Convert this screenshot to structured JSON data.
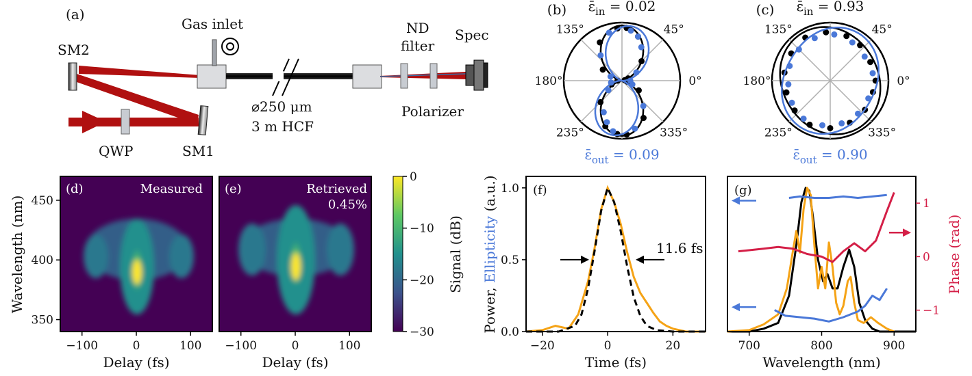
{
  "panel_a": {
    "label": "(a)",
    "sm2": "SM2",
    "sm1": "SM1",
    "gas_inlet": "Gas inlet",
    "qwp": "QWP",
    "fiber_dia": "⌀250 μm",
    "fiber_len": "3 m HCF",
    "nd_1": "ND",
    "nd_2": "filter",
    "spec": "Spec",
    "polarizer": "Polarizer",
    "beam_color": "#b01010"
  },
  "chart_data": [
    {
      "id": "b",
      "type": "polar",
      "label": "(b)",
      "title_main": "ε̄",
      "title_sub": "in",
      "title_val": " = 0.02",
      "bottom_main": "ε̄",
      "bottom_sub": "out",
      "bottom_val": " = 0.09",
      "angle_labels": [
        "0°",
        "45°",
        "135°",
        "180°",
        "235°",
        "335°"
      ],
      "series": [
        {
          "color": "#000000",
          "curve": {
            "e": 0.02,
            "tilt_deg": 90
          },
          "points_deg": [
            20,
            45,
            70,
            95,
            120,
            150,
            180,
            200,
            225,
            250,
            275,
            300,
            330,
            350,
            10,
            85,
            265
          ],
          "points_r": [
            0.12,
            0.5,
            0.85,
            0.95,
            0.8,
            0.4,
            0.08,
            0.2,
            0.55,
            0.88,
            0.98,
            0.78,
            0.35,
            0.1,
            0.05,
            0.96,
            0.97
          ]
        },
        {
          "color": "#4a78d8",
          "curve": {
            "e": 0.09,
            "tilt_deg": 80
          },
          "points_deg": [
            30,
            60,
            80,
            105,
            130,
            160,
            190,
            215,
            240,
            260,
            285,
            310,
            340,
            0,
            70,
            250
          ],
          "points_r": [
            0.3,
            0.7,
            0.92,
            0.9,
            0.6,
            0.22,
            0.2,
            0.3,
            0.66,
            0.93,
            0.9,
            0.6,
            0.2,
            0.15,
            0.85,
            0.8
          ]
        }
      ]
    },
    {
      "id": "c",
      "type": "polar",
      "label": "(c)",
      "title_main": "ε̄",
      "title_sub": "in",
      "title_val": " = 0.93",
      "bottom_main": "ε̄",
      "bottom_sub": "out",
      "bottom_val": " = 0.90",
      "angle_labels": [
        "0°",
        "45°",
        "135°",
        "180°",
        "235°",
        "335°"
      ],
      "series": [
        {
          "color": "#000000",
          "curve": {
            "e": 0.93,
            "tilt_deg": 120
          },
          "points_deg": [
            0,
            25,
            50,
            70,
            95,
            120,
            145,
            170,
            195,
            220,
            245,
            270,
            295,
            320,
            345
          ],
          "points_r": [
            0.82,
            0.8,
            0.84,
            0.86,
            0.88,
            0.9,
            0.86,
            0.84,
            0.82,
            0.84,
            0.88,
            0.86,
            0.84,
            0.82,
            0.8
          ]
        },
        {
          "color": "#4a78d8",
          "curve": {
            "e": 0.9,
            "tilt_deg": 60
          },
          "points_deg": [
            10,
            35,
            60,
            85,
            110,
            135,
            160,
            185,
            210,
            235,
            260,
            285,
            310,
            335
          ],
          "points_r": [
            0.78,
            0.76,
            0.8,
            0.84,
            0.82,
            0.8,
            0.78,
            0.76,
            0.8,
            0.84,
            0.82,
            0.8,
            0.78,
            0.76
          ]
        }
      ]
    },
    {
      "id": "d",
      "type": "heatmap",
      "label": "(d)",
      "title": "Measured",
      "xlabel": "Delay (fs)",
      "ylabel": "Wavelength (nm)",
      "xlim": [
        -140,
        140
      ],
      "ylim": [
        340,
        470
      ],
      "xticks": [
        -100,
        0,
        100
      ],
      "yticks": [
        350,
        400,
        450
      ]
    },
    {
      "id": "e",
      "type": "heatmap",
      "label": "(e)",
      "title": "Retrieved",
      "subtitle": "0.45%",
      "xlabel": "Delay (fs)",
      "xlim": [
        -140,
        140
      ],
      "ylim": [
        340,
        470
      ],
      "xticks": [
        -100,
        0,
        100
      ]
    },
    {
      "id": "colorbar",
      "type": "colorbar",
      "label": "Signal (dB)",
      "ticks": [
        0,
        -10,
        -20,
        -30
      ],
      "range": [
        -30,
        0
      ]
    },
    {
      "id": "f",
      "type": "line",
      "label": "(f)",
      "xlabel": "Time (fs)",
      "ylabel_parts": [
        "Power, ",
        "Ellipticity",
        " (a.u.)"
      ],
      "ylabel_colors": [
        "#111111",
        "#4a78d8",
        "#111111"
      ],
      "xlim": [
        -25,
        30
      ],
      "ylim": [
        0,
        1.08
      ],
      "xticks": [
        -20,
        0,
        20
      ],
      "yticks": [
        0.0,
        0.5,
        1.0
      ],
      "ytick_labels": [
        "0.0",
        "0.5",
        "1.0"
      ],
      "annotation": "11.6 fs",
      "series": [
        {
          "style": "solid",
          "color": "#f5a316",
          "x": [
            -25,
            -20,
            -16,
            -12,
            -9,
            -6,
            -4,
            -2,
            0,
            2,
            4,
            6,
            8,
            10,
            12,
            14,
            16,
            18,
            20,
            24,
            30
          ],
          "y": [
            0.0,
            0.01,
            0.04,
            0.02,
            0.12,
            0.35,
            0.58,
            0.85,
            1.0,
            0.9,
            0.75,
            0.55,
            0.38,
            0.27,
            0.2,
            0.13,
            0.07,
            0.04,
            0.02,
            0.0,
            0.0
          ]
        },
        {
          "style": "dashed",
          "color": "#000000",
          "x": [
            -25,
            -15,
            -10,
            -8,
            -6,
            -4,
            -2,
            0,
            2,
            4,
            6,
            8,
            10,
            12,
            15,
            20,
            30
          ],
          "y": [
            0.0,
            0.0,
            0.04,
            0.12,
            0.3,
            0.56,
            0.84,
            1.0,
            0.9,
            0.7,
            0.45,
            0.24,
            0.11,
            0.04,
            0.01,
            0.0,
            0.0
          ]
        }
      ]
    },
    {
      "id": "g",
      "type": "line",
      "label": "(g)",
      "xlabel": "Wavelength (nm)",
      "ylabel_right": "Phase (rad)",
      "xlim": [
        670,
        930
      ],
      "ylim": [
        0,
        1.08
      ],
      "ylim_right": [
        -1.4,
        1.5
      ],
      "xticks": [
        700,
        800,
        900
      ],
      "yticks_right": [
        1,
        0,
        -1
      ],
      "series": [
        {
          "name_color": "#000000",
          "axis": "left",
          "x": [
            670,
            700,
            720,
            740,
            755,
            765,
            772,
            778,
            783,
            788,
            795,
            802,
            808,
            815,
            822,
            830,
            838,
            845,
            852,
            860,
            870,
            880,
            930
          ],
          "y": [
            0.0,
            0.0,
            0.02,
            0.06,
            0.25,
            0.6,
            0.9,
            1.0,
            0.98,
            0.8,
            0.5,
            0.35,
            0.4,
            0.3,
            0.3,
            0.45,
            0.57,
            0.45,
            0.2,
            0.08,
            0.02,
            0.0,
            0.0
          ]
        },
        {
          "name_color": "#f5a316",
          "axis": "left",
          "x": [
            670,
            700,
            720,
            740,
            752,
            760,
            765,
            770,
            775,
            780,
            785,
            790,
            795,
            800,
            805,
            810,
            815,
            820,
            825,
            830,
            836,
            840,
            845,
            850,
            858,
            868,
            878,
            890,
            900
          ],
          "y": [
            0.0,
            0.01,
            0.05,
            0.12,
            0.3,
            0.55,
            0.7,
            0.55,
            0.85,
            1.0,
            0.95,
            0.6,
            0.3,
            0.45,
            0.3,
            0.62,
            0.45,
            0.2,
            0.12,
            0.18,
            0.35,
            0.38,
            0.2,
            0.08,
            0.06,
            0.1,
            0.06,
            0.02,
            0.0
          ]
        },
        {
          "name_color": "#4a78d8",
          "axis": "left",
          "x": [
            755,
            770,
            790,
            810,
            830,
            850,
            870,
            890
          ],
          "y": [
            0.93,
            0.94,
            0.93,
            0.93,
            0.94,
            0.93,
            0.94,
            0.95
          ]
        },
        {
          "name_color": "#4a78d8",
          "axis": "left",
          "x": [
            735,
            750,
            770,
            790,
            810,
            830,
            850,
            860,
            870,
            880,
            890
          ],
          "y": [
            0.15,
            0.11,
            0.1,
            0.09,
            0.07,
            0.1,
            0.14,
            0.18,
            0.25,
            0.22,
            0.3
          ]
        },
        {
          "name_color": "#d41f47",
          "axis": "right",
          "x": [
            685,
            700,
            720,
            740,
            760,
            780,
            800,
            815,
            830,
            845,
            860,
            875,
            890,
            900
          ],
          "y": [
            0.1,
            0.12,
            0.15,
            0.18,
            0.15,
            0.05,
            0.0,
            -0.1,
            0.1,
            0.25,
            0.1,
            0.3,
            0.85,
            1.2
          ]
        }
      ]
    }
  ]
}
